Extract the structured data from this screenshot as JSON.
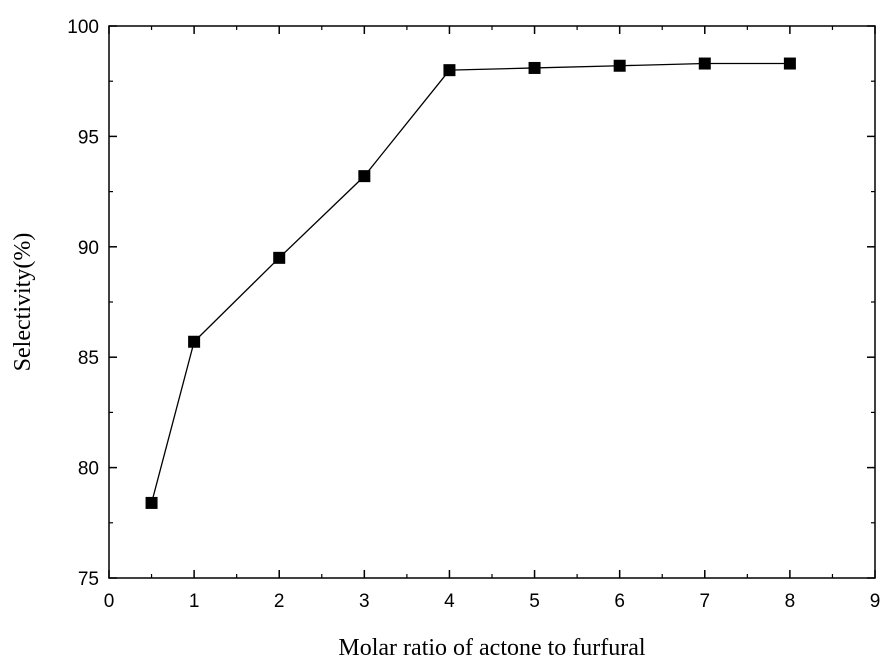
{
  "chart_data": {
    "type": "line",
    "title": "",
    "xlabel": "Molar ratio of actone to furfural",
    "ylabel": "Selectivity(%)",
    "xlim": [
      0,
      9
    ],
    "ylim": [
      75,
      100
    ],
    "x_ticks": [
      0,
      1,
      2,
      3,
      4,
      5,
      6,
      7,
      8,
      9
    ],
    "y_ticks": [
      75,
      80,
      85,
      90,
      95,
      100
    ],
    "grid": false,
    "marker": "filled-square",
    "line_color": "#000000",
    "series": [
      {
        "x": [
          0.5,
          1,
          2,
          3,
          4,
          5,
          6,
          7,
          8
        ],
        "values": [
          78.4,
          85.7,
          89.5,
          93.2,
          98.0,
          98.1,
          98.2,
          98.3,
          98.3
        ]
      }
    ]
  }
}
